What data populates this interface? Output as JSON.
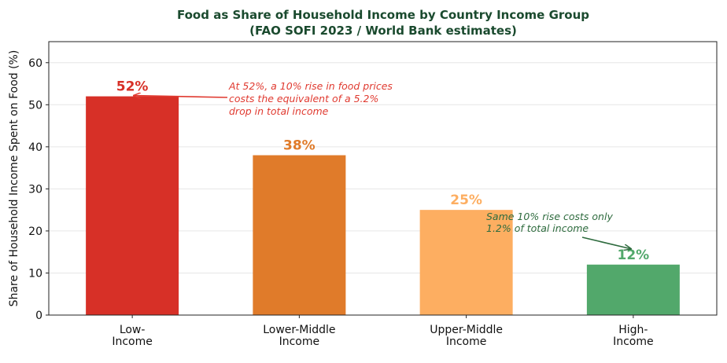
{
  "chart_data": {
    "type": "bar",
    "title": "Food as Share of Household Income by Country Income Group",
    "subtitle": "(FAO SOFI 2023 / World Bank estimates)",
    "xlabel": "",
    "ylabel": "Share of Household Income Spent on Food (%)",
    "ylim": [
      0,
      65
    ],
    "yticks": [
      0,
      10,
      20,
      30,
      40,
      50,
      60
    ],
    "grid": "horizontal",
    "categories": [
      [
        "Low-",
        "Income"
      ],
      [
        "Lower-Middle",
        "Income"
      ],
      [
        "Upper-Middle",
        "Income"
      ],
      [
        "High-",
        "Income"
      ]
    ],
    "values": [
      52,
      38,
      25,
      12
    ],
    "data_labels": [
      "52%",
      "38%",
      "25%",
      "12%"
    ],
    "colors": [
      "#d73027",
      "#e07b2a",
      "#fdae61",
      "#52a86b"
    ],
    "label_colors": [
      "#d73027",
      "#e07b2a",
      "#fdae61",
      "#52a86b"
    ],
    "title_color": "#1a4a2e",
    "annotations": [
      {
        "lines": [
          "At 52%, a 10% rise in food prices",
          "costs the equivalent of a 5.2%",
          "drop in total income"
        ],
        "color": "#e03a30",
        "category": 0,
        "value": 52
      },
      {
        "lines": [
          "Same 10% rise costs only",
          "1.2% of total income"
        ],
        "color": "#2e6b3e",
        "category": 3,
        "value": 12
      }
    ]
  }
}
